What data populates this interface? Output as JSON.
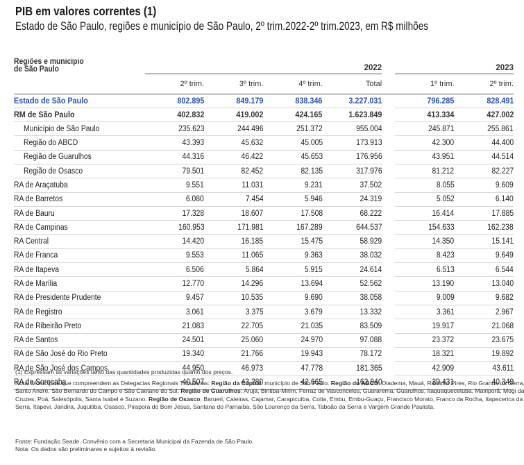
{
  "title": "PIB em valores correntes (1)",
  "subtitle": "Estado de São Paulo, regiões e município de São Paulo, 2º trim.2022-2º trim.2023, em R$ milhões",
  "table": {
    "header_label": "Regiões e município de São Paulo",
    "year_2022": "2022",
    "year_2023": "2023",
    "columns": [
      "2º trim.",
      "3º trim.",
      "4º trim.",
      "Total",
      "1º trim.",
      "2º trim."
    ],
    "rows": [
      {
        "name": "Estado de São Paulo",
        "values": [
          "802.895",
          "849.179",
          "838.346",
          "3.227.031",
          "796.285",
          "828.491"
        ]
      },
      {
        "name": "RM de São Paulo",
        "values": [
          "402.832",
          "419.002",
          "424.165",
          "1.623.849",
          "413.334",
          "427.002"
        ]
      },
      {
        "name": "Município de São Paulo",
        "values": [
          "235.623",
          "244.496",
          "251.372",
          "955.004",
          "245.871",
          "255.861"
        ]
      },
      {
        "name": "Região do ABCD",
        "values": [
          "43.393",
          "45.632",
          "45.005",
          "173.913",
          "42.300",
          "44.400"
        ]
      },
      {
        "name": "Região de Guarulhos",
        "values": [
          "44.316",
          "46.422",
          "45.653",
          "176.956",
          "43.951",
          "44.514"
        ]
      },
      {
        "name": "Região de Osasco",
        "values": [
          "79.501",
          "82.452",
          "82.135",
          "317.976",
          "81.212",
          "82.227"
        ]
      },
      {
        "name": "RA de Araçatuba",
        "values": [
          "9.551",
          "11.031",
          "9.231",
          "37.502",
          "8.055",
          "9.609"
        ]
      },
      {
        "name": "RA de Barretos",
        "values": [
          "6.080",
          "7.454",
          "5.946",
          "24.319",
          "5.052",
          "6.140"
        ]
      },
      {
        "name": "RA de Bauru",
        "values": [
          "17.328",
          "18.607",
          "17.508",
          "68.222",
          "16.414",
          "17.885"
        ]
      },
      {
        "name": "RA de Campinas",
        "values": [
          "160.953",
          "171.981",
          "167.289",
          "644.537",
          "154.633",
          "162.238"
        ]
      },
      {
        "name": "RA Central",
        "values": [
          "14.420",
          "16.185",
          "15.475",
          "58.929",
          "14.350",
          "15.141"
        ]
      },
      {
        "name": "RA de Franca",
        "values": [
          "9.553",
          "11.065",
          "9.363",
          "38.032",
          "8.423",
          "9.649"
        ]
      },
      {
        "name": "RA de Itapeva",
        "values": [
          "6.506",
          "5.864",
          "5.915",
          "24.614",
          "6.513",
          "6.544"
        ]
      },
      {
        "name": "RA de Marília",
        "values": [
          "12.770",
          "14.296",
          "13.694",
          "52.562",
          "13.190",
          "13.040"
        ]
      },
      {
        "name": "RA de Presidente Prudente",
        "values": [
          "9.457",
          "10.535",
          "9.690",
          "38.058",
          "9.009",
          "9.682"
        ]
      },
      {
        "name": "RA de Registro",
        "values": [
          "3.061",
          "3.375",
          "3.679",
          "13.332",
          "3.361",
          "2.967"
        ]
      },
      {
        "name": "RA de Ribeirão Preto",
        "values": [
          "21.083",
          "22.705",
          "21.035",
          "83.509",
          "19.917",
          "21.068"
        ]
      },
      {
        "name": "RA de Santos",
        "values": [
          "24.501",
          "25.060",
          "24.970",
          "97.088",
          "23.372",
          "23.675"
        ]
      },
      {
        "name": "RA de São José do Rio Preto",
        "values": [
          "19.340",
          "21.766",
          "19.943",
          "78.172",
          "18.321",
          "19.892"
        ]
      },
      {
        "name": "RA de São José dos Campos",
        "values": [
          "44.950",
          "46.973",
          "47.778",
          "181.365",
          "42.909",
          "43.611"
        ]
      },
      {
        "name": "RA de Sorocaba",
        "values": [
          "40.507",
          "43.280",
          "42.665",
          "162.940",
          "39.431",
          "40.349"
        ]
      }
    ]
  },
  "footnote1": "(1) Expressam as variações tanto das quantidades produzidas quanto dos preços.",
  "note": {
    "intro": "Nota: Municípios que compreendem as Delegacias Regionais Tributárias: ",
    "capital_label": "Região da Capital",
    "capital_text": ": município de São Paulo. ",
    "abcd_label": "Região do ABCD",
    "abcd_text": ": Diadema, Mauá, Ribeirão Pires, Rio Grande da Serra, Santo André, São Bernardo do Campo e São Caetano do Sul. ",
    "guarulhos_label": "Região de Guarulhos",
    "guarulhos_text": ": Arujá, Biritiba-Mirim, Ferraz de Vasconcelos, Guararema, Guarulhos, Itaquaquecetuba, Mairiporã, Mogi das Cruzes, Poá, Salesópolis, Santa Isabel e Suzano. ",
    "osasco_label": "Região de Osasco",
    "osasco_text": ": Barueri, Caieiras, Cajamar, Carapicuíba, Cotia, Embu, Embu-Guaçu, Francisco Morato, Franco da Rocha, Itapecerica da Serra, Itapevi, Jandira, Juquitiba, Osasco, Pirapora do Bom Jesus, Santana do Parnaíba, São Lourenço da Serra, Taboão da Serra e Vargem Grande Paulista."
  },
  "source": "Fonte: Fundação Seade. Convênio com a Secretaria Municipal da Fazenda de São Paulo.",
  "source_note": "Nota: Os dados são preliminares e sujeitos à revisão."
}
